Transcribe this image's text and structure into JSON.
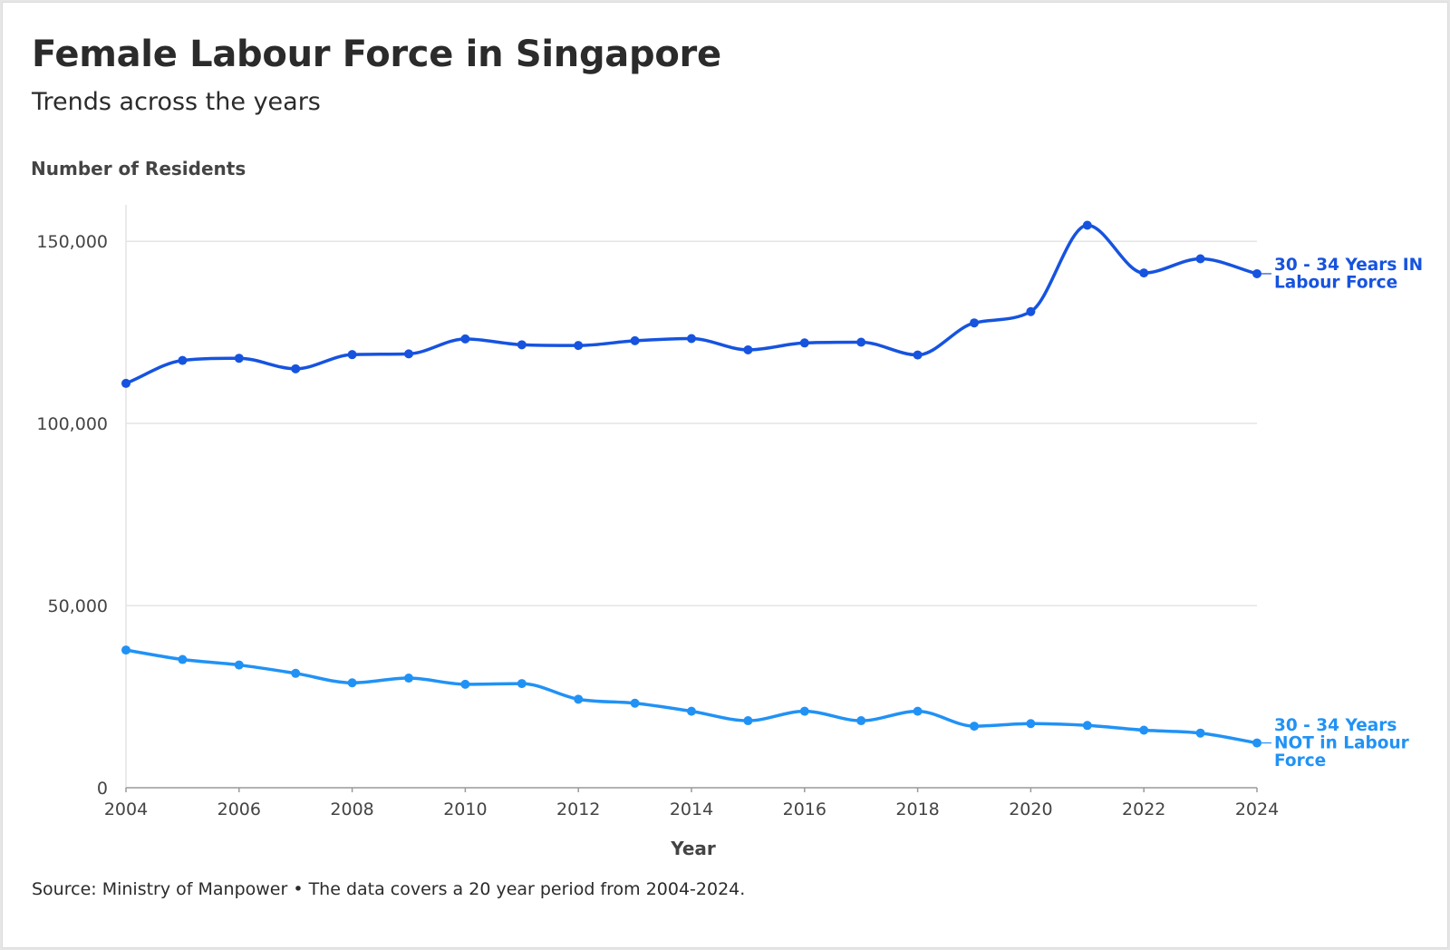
{
  "header": {
    "title": "Female Labour Force in Singapore",
    "subtitle": "Trends across the years"
  },
  "footer": {
    "source": "Source: Ministry of Manpower • The data covers a 20 year period from 2004-2024."
  },
  "chart_data": {
    "type": "line",
    "title": "Female Labour Force in Singapore",
    "subtitle": "Trends across the years",
    "xlabel": "Year",
    "ylabel": "Number of Residents",
    "xlim": [
      2004,
      2024
    ],
    "ylim": [
      0,
      160000
    ],
    "x_ticks": [
      "2004",
      "2006",
      "2008",
      "2010",
      "2012",
      "2014",
      "2016",
      "2018",
      "2020",
      "2022",
      "2024"
    ],
    "y_ticks": [
      "0",
      "50,000",
      "100,000",
      "150,000"
    ],
    "y_tick_values": [
      0,
      50000,
      100000,
      150000
    ],
    "grid": "horizontal",
    "legend": "end-of-line labels",
    "x": [
      2004,
      2005,
      2006,
      2007,
      2008,
      2009,
      2010,
      2011,
      2012,
      2013,
      2014,
      2015,
      2016,
      2017,
      2018,
      2019,
      2020,
      2021,
      2022,
      2023,
      2024
    ],
    "series": [
      {
        "name": "30 - 34 Years IN Labour Force",
        "label_lines": [
          "30 - 34 Years IN",
          "Labour Force"
        ],
        "color": "#1653df",
        "values": [
          111000,
          117300,
          117900,
          115000,
          118900,
          119100,
          123200,
          121600,
          121400,
          122700,
          123300,
          120200,
          122100,
          122300,
          118800,
          127600,
          130700,
          154400,
          141300,
          145200,
          141100
        ]
      },
      {
        "name": "30 - 34 Years NOT in Labour Force",
        "label_lines": [
          "30 - 34 Years",
          "NOT in Labour",
          "Force"
        ],
        "color": "#2192f5",
        "values": [
          37800,
          35200,
          33700,
          31400,
          28800,
          30100,
          28400,
          28600,
          24300,
          23200,
          21000,
          18400,
          21000,
          18400,
          21000,
          16900,
          17600,
          17100,
          15800,
          15000,
          12300
        ]
      }
    ]
  }
}
